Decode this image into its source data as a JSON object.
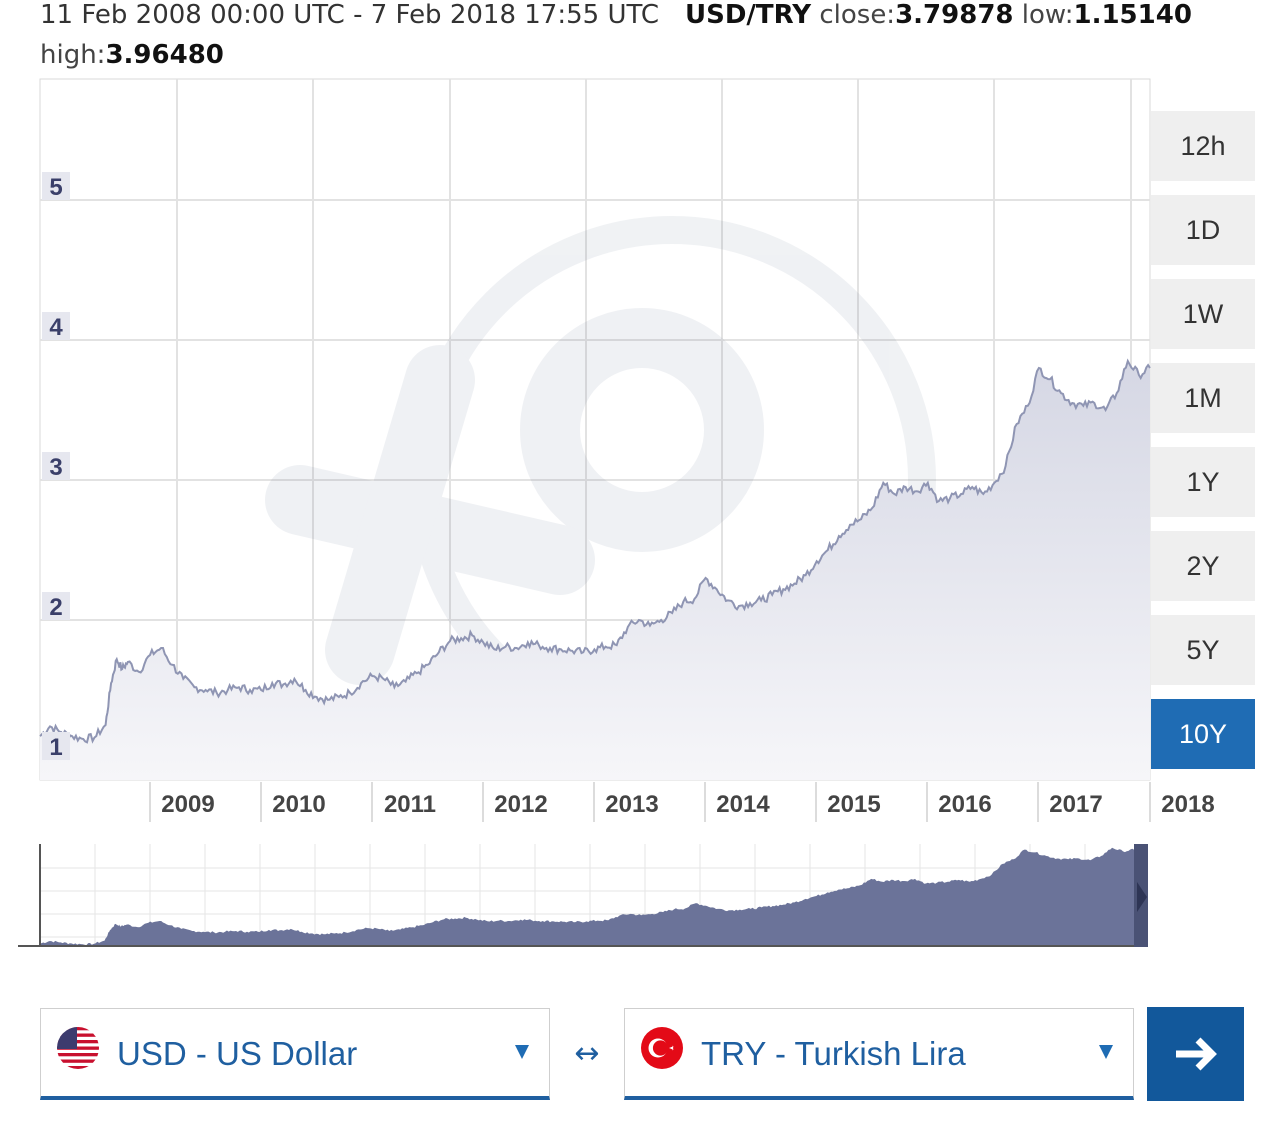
{
  "header": {
    "range_text": "11 Feb 2008 00:00 UTC - 7 Feb 2018 17:55 UTC",
    "pair": "USD/TRY",
    "close_label": "close:",
    "close_value": "3.79878",
    "low_label": "low:",
    "low_value": "1.15140",
    "high_label": "high:",
    "high_value": "3.96480"
  },
  "range_buttons": [
    {
      "label": "12h",
      "active": false
    },
    {
      "label": "1D",
      "active": false
    },
    {
      "label": "1W",
      "active": false
    },
    {
      "label": "1M",
      "active": false
    },
    {
      "label": "1Y",
      "active": false
    },
    {
      "label": "2Y",
      "active": false
    },
    {
      "label": "5Y",
      "active": false
    },
    {
      "label": "10Y",
      "active": true
    }
  ],
  "from_currency": {
    "label": "USD - US Dollar",
    "flag": "us-flag-icon"
  },
  "to_currency": {
    "label": "TRY - Turkish Lira",
    "flag": "tr-flag-icon"
  },
  "swap_icon": "↔",
  "go_icon": "arrow-right-icon",
  "colors": {
    "line": "#8f95b3",
    "area": "#e8e9f0",
    "navigator_fill": "#6b7399",
    "active_button": "#1f6cb4",
    "selector_text": "#1f5fa0"
  },
  "chart_data": {
    "type": "area",
    "x_tick_labels": [
      "2009",
      "2010",
      "2011",
      "2012",
      "2013",
      "2014",
      "2015",
      "2016",
      "2017",
      "2018"
    ],
    "y_tick_labels": [
      "1",
      "2",
      "3",
      "4",
      "5"
    ],
    "ylim": [
      0.9,
      5.0
    ],
    "xlim": [
      2008.11,
      2018.1
    ],
    "grid": true,
    "series": [
      {
        "x": [
          2008.11,
          2008.2,
          2008.3,
          2008.4,
          2008.5,
          2008.6,
          2008.7,
          2008.75,
          2008.8,
          2008.85,
          2008.9,
          2009.0,
          2009.1,
          2009.2,
          2009.3,
          2009.4,
          2009.5,
          2009.6,
          2009.7,
          2009.8,
          2009.9,
          2010.0,
          2010.1,
          2010.2,
          2010.3,
          2010.4,
          2010.5,
          2010.6,
          2010.7,
          2010.8,
          2010.9,
          2011.0,
          2011.1,
          2011.2,
          2011.3,
          2011.4,
          2011.5,
          2011.6,
          2011.7,
          2011.8,
          2011.9,
          2012.0,
          2012.1,
          2012.2,
          2012.3,
          2012.4,
          2012.5,
          2012.6,
          2012.7,
          2012.8,
          2012.9,
          2013.0,
          2013.1,
          2013.2,
          2013.3,
          2013.4,
          2013.5,
          2013.6,
          2013.7,
          2013.8,
          2013.9,
          2014.0,
          2014.1,
          2014.2,
          2014.3,
          2014.4,
          2014.5,
          2014.6,
          2014.7,
          2014.8,
          2014.9,
          2015.0,
          2015.1,
          2015.2,
          2015.3,
          2015.4,
          2015.5,
          2015.6,
          2015.7,
          2015.8,
          2015.9,
          2016.0,
          2016.1,
          2016.2,
          2016.3,
          2016.4,
          2016.5,
          2016.6,
          2016.7,
          2016.8,
          2016.9,
          2017.0,
          2017.1,
          2017.2,
          2017.3,
          2017.4,
          2017.5,
          2017.6,
          2017.7,
          2017.8,
          2017.9,
          2018.0,
          2018.1
        ],
        "y": [
          1.17,
          1.24,
          1.2,
          1.17,
          1.15,
          1.16,
          1.25,
          1.55,
          1.72,
          1.65,
          1.7,
          1.63,
          1.75,
          1.8,
          1.68,
          1.58,
          1.52,
          1.5,
          1.48,
          1.5,
          1.52,
          1.5,
          1.5,
          1.55,
          1.54,
          1.58,
          1.5,
          1.45,
          1.43,
          1.45,
          1.48,
          1.55,
          1.6,
          1.58,
          1.52,
          1.56,
          1.62,
          1.68,
          1.77,
          1.85,
          1.87,
          1.89,
          1.84,
          1.79,
          1.81,
          1.8,
          1.84,
          1.82,
          1.8,
          1.79,
          1.78,
          1.77,
          1.79,
          1.81,
          1.82,
          1.95,
          2.0,
          1.96,
          2.0,
          2.05,
          2.13,
          2.15,
          2.3,
          2.22,
          2.14,
          2.1,
          2.12,
          2.14,
          2.18,
          2.22,
          2.26,
          2.32,
          2.42,
          2.5,
          2.6,
          2.68,
          2.72,
          2.8,
          2.98,
          2.9,
          2.95,
          2.92,
          2.98,
          2.85,
          2.87,
          2.9,
          2.95,
          2.9,
          2.98,
          3.1,
          3.4,
          3.53,
          3.8,
          3.72,
          3.62,
          3.55,
          3.53,
          3.55,
          3.5,
          3.62,
          3.85,
          3.75,
          3.8
        ]
      }
    ]
  }
}
